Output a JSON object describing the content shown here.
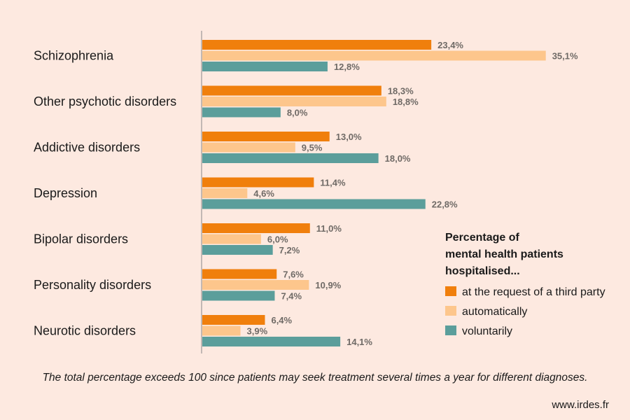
{
  "chart_data": {
    "type": "bar",
    "orientation": "horizontal",
    "categories": [
      "Schizophrenia",
      "Other psychotic disorders",
      "Addictive disorders",
      "Depression",
      "Bipolar disorders",
      "Personality disorders",
      "Neurotic disorders"
    ],
    "series": [
      {
        "name": "at the request of a third party",
        "color": "#f07f0c",
        "values": [
          23.4,
          18.3,
          13.0,
          11.4,
          11.0,
          7.6,
          6.4
        ],
        "labels": [
          "23,4%",
          "18,3%",
          "13,0%",
          "11,4%",
          "11,0%",
          "7,6%",
          "6,4%"
        ]
      },
      {
        "name": "automatically",
        "color": "#fdc68c",
        "values": [
          35.1,
          18.8,
          9.5,
          4.6,
          6.0,
          10.9,
          3.9
        ],
        "labels": [
          "35,1%",
          "18,8%",
          "9,5%",
          "4,6%",
          "6,0%",
          "10,9%",
          "3,9%"
        ]
      },
      {
        "name": "voluntarily",
        "color": "#5b9e9b",
        "values": [
          12.8,
          8.0,
          18.0,
          22.8,
          7.2,
          7.4,
          14.1
        ],
        "labels": [
          "12,8%",
          "8,0%",
          "18,0%",
          "22,8%",
          "7,2%",
          "7,4%",
          "14,1%"
        ]
      }
    ],
    "xlim": [
      0,
      40
    ],
    "legend": {
      "title_lines": [
        "Percentage of",
        "mental health patients",
        "hospitalised..."
      ],
      "position": "right"
    },
    "grid": false
  },
  "footnote": "The total percentage exceeds 100 since patients may seek treatment several times a year for different diagnoses.",
  "source": "www.irdes.fr"
}
